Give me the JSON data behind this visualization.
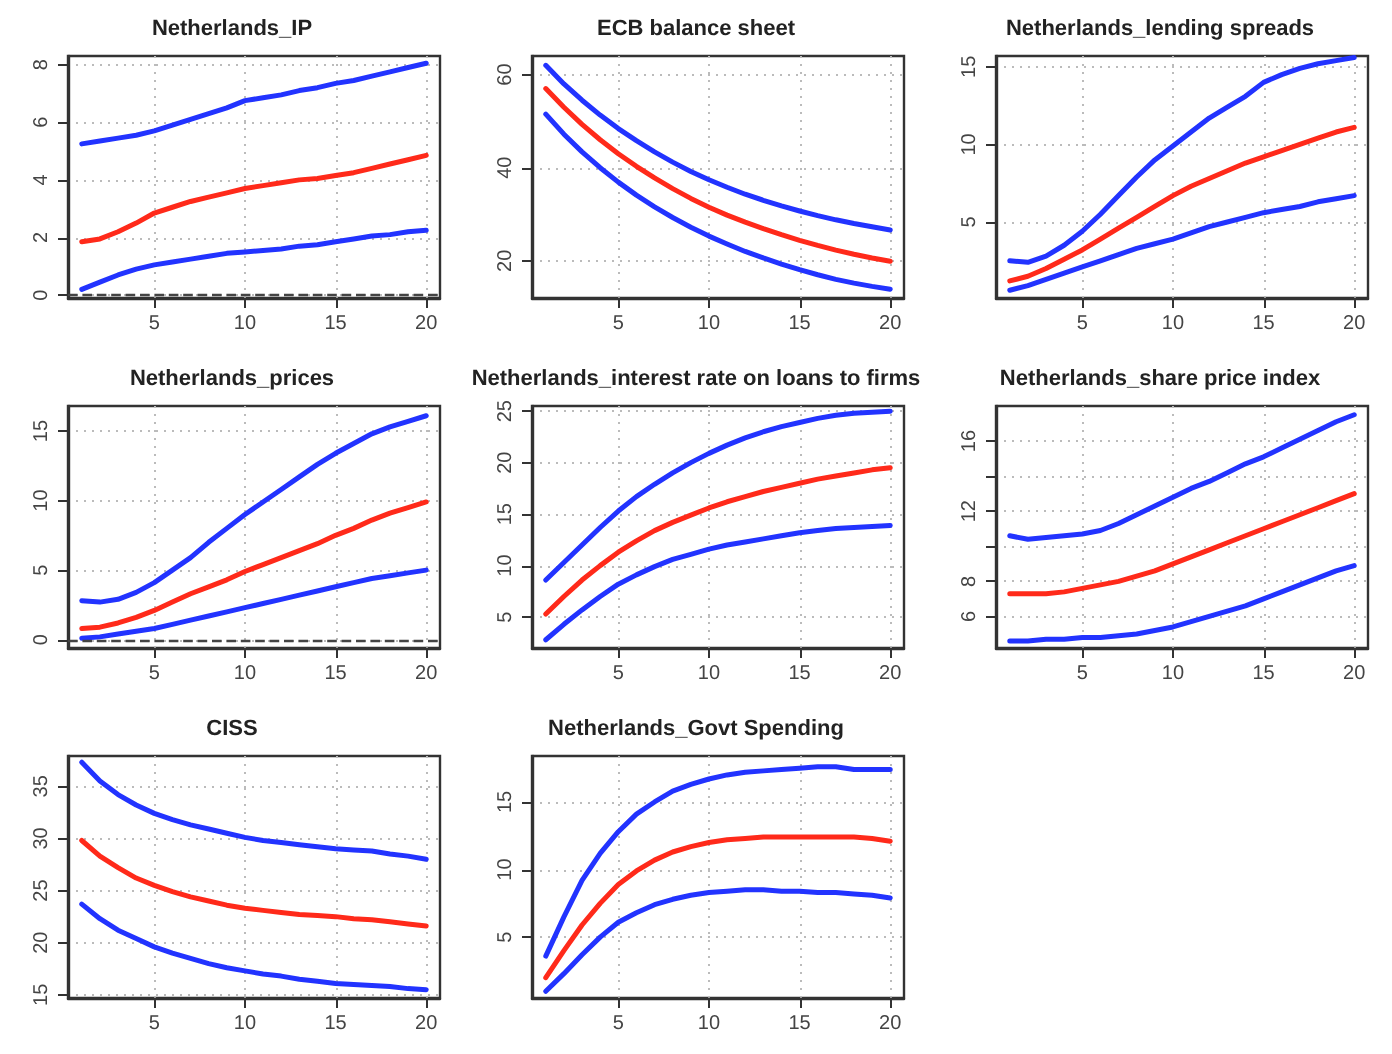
{
  "chart_data": [
    {
      "type": "line",
      "title": "Netherlands_IP",
      "x": [
        1,
        2,
        3,
        4,
        5,
        6,
        7,
        8,
        9,
        10,
        11,
        12,
        13,
        14,
        15,
        16,
        17,
        18,
        19,
        20
      ],
      "xlim": [
        0.24,
        20.76
      ],
      "xticks": [
        5,
        10,
        15,
        20
      ],
      "ylim": [
        -0.1,
        8.3
      ],
      "yticks": [
        0,
        2,
        4,
        6,
        8
      ],
      "grid": true,
      "marker": "none",
      "line_style": "solid",
      "ref_lines": [
        {
          "axis": "y",
          "value": 0,
          "color": "#444444",
          "line_style": "dashed"
        }
      ],
      "series": [
        {
          "color": "#2233ff",
          "values": [
            5.25,
            5.35,
            5.45,
            5.55,
            5.7,
            5.9,
            6.1,
            6.3,
            6.5,
            6.75,
            6.85,
            6.95,
            7.1,
            7.2,
            7.35,
            7.45,
            7.6,
            7.75,
            7.9,
            8.05
          ]
        },
        {
          "color": "#ff2a1a",
          "values": [
            1.85,
            1.95,
            2.2,
            2.5,
            2.85,
            3.05,
            3.25,
            3.4,
            3.55,
            3.7,
            3.8,
            3.9,
            4.0,
            4.05,
            4.15,
            4.25,
            4.4,
            4.55,
            4.7,
            4.85
          ]
        },
        {
          "color": "#2233ff",
          "values": [
            0.2,
            0.45,
            0.7,
            0.9,
            1.05,
            1.15,
            1.25,
            1.35,
            1.45,
            1.5,
            1.55,
            1.6,
            1.7,
            1.75,
            1.85,
            1.95,
            2.05,
            2.1,
            2.2,
            2.25
          ]
        }
      ]
    },
    {
      "type": "line",
      "title": "ECB balance sheet",
      "x": [
        1,
        2,
        3,
        4,
        5,
        6,
        7,
        8,
        9,
        10,
        11,
        12,
        13,
        14,
        15,
        16,
        17,
        18,
        19,
        20
      ],
      "xlim": [
        0.24,
        20.76
      ],
      "xticks": [
        5,
        10,
        15,
        20
      ],
      "ylim": [
        12,
        64
      ],
      "yticks": [
        20,
        40,
        60
      ],
      "grid": true,
      "marker": "none",
      "line_style": "solid",
      "series": [
        {
          "color": "#2233ff",
          "values": [
            62,
            58,
            54.5,
            51.3,
            48.4,
            45.8,
            43.4,
            41.2,
            39.2,
            37.4,
            35.8,
            34.3,
            33,
            31.8,
            30.7,
            29.7,
            28.8,
            28,
            27.3,
            26.6
          ]
        },
        {
          "color": "#ff2a1a",
          "values": [
            57,
            53,
            49.3,
            46,
            43,
            40.3,
            37.8,
            35.5,
            33.4,
            31.5,
            29.8,
            28.3,
            26.9,
            25.6,
            24.4,
            23.3,
            22.3,
            21.4,
            20.6,
            19.9
          ]
        },
        {
          "color": "#2233ff",
          "values": [
            51.5,
            47.2,
            43.4,
            40,
            36.9,
            34.1,
            31.6,
            29.3,
            27.2,
            25.3,
            23.6,
            22,
            20.6,
            19.3,
            18.1,
            17,
            16,
            15.2,
            14.5,
            13.9
          ]
        }
      ]
    },
    {
      "type": "line",
      "title": "Netherlands_lending spreads",
      "x": [
        1,
        2,
        3,
        4,
        5,
        6,
        7,
        8,
        9,
        10,
        11,
        12,
        13,
        14,
        15,
        16,
        17,
        18,
        19,
        20
      ],
      "xlim": [
        0.24,
        20.76
      ],
      "xticks": [
        5,
        10,
        15,
        20
      ],
      "ylim": [
        0.1,
        15.7
      ],
      "yticks": [
        5,
        10,
        15
      ],
      "grid": true,
      "marker": "none",
      "line_style": "solid",
      "series": [
        {
          "color": "#2233ff",
          "values": [
            2.5,
            2.4,
            2.8,
            3.5,
            4.4,
            5.5,
            6.7,
            7.9,
            9.0,
            9.9,
            10.8,
            11.7,
            12.4,
            13.1,
            14.0,
            14.5,
            14.9,
            15.2,
            15.4,
            15.6
          ]
        },
        {
          "color": "#ff2a1a",
          "values": [
            1.2,
            1.5,
            2,
            2.6,
            3.2,
            3.9,
            4.6,
            5.3,
            6.0,
            6.7,
            7.3,
            7.8,
            8.3,
            8.8,
            9.2,
            9.6,
            10.0,
            10.4,
            10.8,
            11.1
          ]
        },
        {
          "color": "#2233ff",
          "values": [
            0.6,
            0.9,
            1.3,
            1.7,
            2.1,
            2.5,
            2.9,
            3.3,
            3.6,
            3.9,
            4.3,
            4.7,
            5.0,
            5.3,
            5.6,
            5.8,
            6.0,
            6.3,
            6.5,
            6.7
          ]
        }
      ]
    },
    {
      "type": "line",
      "title": "Netherlands_prices",
      "x": [
        1,
        2,
        3,
        4,
        5,
        6,
        7,
        8,
        9,
        10,
        11,
        12,
        13,
        14,
        15,
        16,
        17,
        18,
        19,
        20
      ],
      "xlim": [
        0.24,
        20.76
      ],
      "xticks": [
        5,
        10,
        15,
        20
      ],
      "ylim": [
        -0.6,
        16.8
      ],
      "yticks": [
        0,
        5,
        10,
        15
      ],
      "grid": true,
      "marker": "none",
      "line_style": "solid",
      "ref_lines": [
        {
          "axis": "y",
          "value": 0,
          "color": "#444444",
          "line_style": "dashed"
        }
      ],
      "series": [
        {
          "color": "#2233ff",
          "values": [
            2.8,
            2.7,
            2.9,
            3.4,
            4.1,
            5.0,
            5.9,
            7.0,
            8.0,
            9.0,
            9.9,
            10.8,
            11.7,
            12.6,
            13.4,
            14.1,
            14.8,
            15.3,
            15.7,
            16.1
          ]
        },
        {
          "color": "#ff2a1a",
          "values": [
            0.8,
            0.9,
            1.2,
            1.6,
            2.1,
            2.7,
            3.3,
            3.8,
            4.3,
            4.9,
            5.4,
            5.9,
            6.4,
            6.9,
            7.5,
            8.0,
            8.6,
            9.1,
            9.5,
            9.9
          ]
        },
        {
          "color": "#2233ff",
          "values": [
            0.1,
            0.2,
            0.4,
            0.6,
            0.8,
            1.1,
            1.4,
            1.7,
            2.0,
            2.3,
            2.6,
            2.9,
            3.2,
            3.5,
            3.8,
            4.1,
            4.4,
            4.6,
            4.8,
            5.0
          ]
        }
      ]
    },
    {
      "type": "line",
      "title": "Netherlands_interest rate on loans to firms",
      "x": [
        1,
        2,
        3,
        4,
        5,
        6,
        7,
        8,
        9,
        10,
        11,
        12,
        13,
        14,
        15,
        16,
        17,
        18,
        19,
        20
      ],
      "xlim": [
        0.24,
        20.76
      ],
      "xticks": [
        5,
        10,
        15,
        20
      ],
      "ylim": [
        2,
        25.5
      ],
      "yticks": [
        5,
        10,
        15,
        20,
        25
      ],
      "grid": true,
      "marker": "none",
      "line_style": "solid",
      "series": [
        {
          "color": "#2233ff",
          "values": [
            8.6,
            10.3,
            12.0,
            13.7,
            15.3,
            16.7,
            17.9,
            19.0,
            20.0,
            20.9,
            21.7,
            22.4,
            23.0,
            23.5,
            23.9,
            24.3,
            24.6,
            24.8,
            24.9,
            25.0
          ]
        },
        {
          "color": "#ff2a1a",
          "values": [
            5.3,
            7.0,
            8.6,
            10.0,
            11.3,
            12.4,
            13.4,
            14.2,
            14.9,
            15.6,
            16.2,
            16.7,
            17.2,
            17.6,
            18.0,
            18.4,
            18.7,
            19.0,
            19.3,
            19.5
          ]
        },
        {
          "color": "#2233ff",
          "values": [
            2.8,
            4.3,
            5.7,
            7.0,
            8.2,
            9.1,
            9.9,
            10.6,
            11.1,
            11.6,
            12.0,
            12.3,
            12.6,
            12.9,
            13.2,
            13.4,
            13.6,
            13.7,
            13.8,
            13.9
          ]
        }
      ]
    },
    {
      "type": "line",
      "title": "Netherlands_share price index",
      "x": [
        1,
        2,
        3,
        4,
        5,
        6,
        7,
        8,
        9,
        10,
        11,
        12,
        13,
        14,
        15,
        16,
        17,
        18,
        19,
        20
      ],
      "xlim": [
        0.24,
        20.76
      ],
      "xticks": [
        5,
        10,
        15,
        20
      ],
      "ylim": [
        4.2,
        18
      ],
      "yticks": [
        6,
        8,
        {
          "value": 10,
          "label": null
        },
        12,
        {
          "value": 14,
          "label": null
        },
        16
      ],
      "grid": true,
      "marker": "none",
      "line_style": "solid",
      "series": [
        {
          "color": "#2233ff",
          "values": [
            10.6,
            10.4,
            10.5,
            10.6,
            10.7,
            10.9,
            11.3,
            11.8,
            12.3,
            12.8,
            13.3,
            13.7,
            14.2,
            14.7,
            15.1,
            15.6,
            16.1,
            16.6,
            17.1,
            17.5
          ]
        },
        {
          "color": "#ff2a1a",
          "values": [
            7.3,
            7.3,
            7.3,
            7.4,
            7.6,
            7.8,
            8.0,
            8.3,
            8.6,
            9.0,
            9.4,
            9.8,
            10.2,
            10.6,
            11.0,
            11.4,
            11.8,
            12.2,
            12.6,
            13.0
          ]
        },
        {
          "color": "#2233ff",
          "values": [
            4.6,
            4.6,
            4.7,
            4.7,
            4.8,
            4.8,
            4.9,
            5.0,
            5.2,
            5.4,
            5.7,
            6.0,
            6.3,
            6.6,
            7.0,
            7.4,
            7.8,
            8.2,
            8.6,
            8.9
          ]
        }
      ]
    },
    {
      "type": "line",
      "title": "CISS",
      "x": [
        1,
        2,
        3,
        4,
        5,
        6,
        7,
        8,
        9,
        10,
        11,
        12,
        13,
        14,
        15,
        16,
        17,
        18,
        19,
        20
      ],
      "xlim": [
        0.24,
        20.76
      ],
      "xticks": [
        5,
        10,
        15,
        20
      ],
      "ylim": [
        14.7,
        37.9
      ],
      "yticks": [
        15,
        20,
        25,
        30,
        35
      ],
      "grid": true,
      "marker": "none",
      "line_style": "solid",
      "series": [
        {
          "color": "#2233ff",
          "values": [
            37.3,
            35.5,
            34.2,
            33.2,
            32.4,
            31.8,
            31.3,
            30.9,
            30.5,
            30.1,
            29.8,
            29.6,
            29.4,
            29.2,
            29.0,
            28.9,
            28.8,
            28.5,
            28.3,
            28.0
          ]
        },
        {
          "color": "#ff2a1a",
          "values": [
            29.8,
            28.3,
            27.2,
            26.2,
            25.5,
            24.9,
            24.4,
            24.0,
            23.6,
            23.3,
            23.1,
            22.9,
            22.7,
            22.6,
            22.5,
            22.3,
            22.2,
            22.0,
            21.8,
            21.6
          ]
        },
        {
          "color": "#2233ff",
          "values": [
            23.7,
            22.3,
            21.2,
            20.4,
            19.6,
            19.0,
            18.5,
            18.0,
            17.6,
            17.3,
            17.0,
            16.8,
            16.5,
            16.3,
            16.1,
            16.0,
            15.9,
            15.8,
            15.6,
            15.5
          ]
        }
      ]
    },
    {
      "type": "line",
      "title": "Netherlands_Govt Spending",
      "x": [
        1,
        2,
        3,
        4,
        5,
        6,
        7,
        8,
        9,
        10,
        11,
        12,
        13,
        14,
        15,
        16,
        17,
        18,
        19,
        20
      ],
      "xlim": [
        0.24,
        20.76
      ],
      "xticks": [
        5,
        10,
        15,
        20
      ],
      "ylim": [
        0.5,
        18.4
      ],
      "yticks": [
        5,
        10,
        15
      ],
      "grid": true,
      "marker": "none",
      "line_style": "solid",
      "series": [
        {
          "color": "#2233ff",
          "values": [
            3.6,
            6.5,
            9.2,
            11.2,
            12.8,
            14.1,
            15.0,
            15.8,
            16.3,
            16.7,
            17.0,
            17.2,
            17.3,
            17.4,
            17.5,
            17.6,
            17.6,
            17.4,
            17.4,
            17.4
          ]
        },
        {
          "color": "#ff2a1a",
          "values": [
            2.0,
            4.0,
            5.9,
            7.5,
            8.9,
            9.9,
            10.7,
            11.3,
            11.7,
            12.0,
            12.2,
            12.3,
            12.4,
            12.4,
            12.4,
            12.4,
            12.4,
            12.4,
            12.3,
            12.1
          ]
        },
        {
          "color": "#2233ff",
          "values": [
            1.0,
            2.3,
            3.7,
            5.0,
            6.1,
            6.8,
            7.4,
            7.8,
            8.1,
            8.3,
            8.4,
            8.5,
            8.5,
            8.4,
            8.4,
            8.3,
            8.3,
            8.2,
            8.1,
            7.9
          ]
        }
      ]
    }
  ]
}
